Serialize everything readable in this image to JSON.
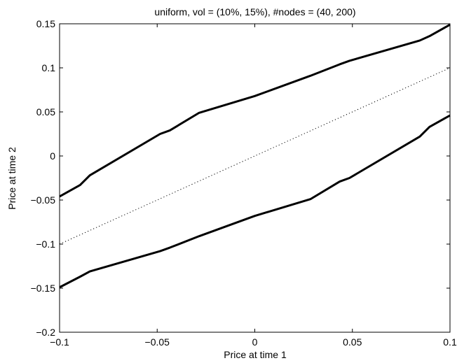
{
  "chart_data": {
    "type": "line",
    "title": "uniform, vol = (10%, 15%), #nodes = (40, 200)",
    "xlabel": "Price at time 1",
    "ylabel": "Price at time 2",
    "xlim": [
      -0.1,
      0.1
    ],
    "ylim": [
      -0.2,
      0.15
    ],
    "xticks": [
      -0.1,
      -0.05,
      0,
      0.05,
      0.1
    ],
    "xtick_labels": [
      "−0.1",
      "−0.05",
      "0",
      "0.05",
      "0.1"
    ],
    "yticks": [
      -0.2,
      -0.15,
      -0.1,
      -0.05,
      0,
      0.05,
      0.1,
      0.15
    ],
    "ytick_labels": [
      "−0.2",
      "−0.15",
      "−0.1",
      "−0.05",
      "0",
      "0.05",
      "0.1",
      "0.15"
    ],
    "grid": false,
    "legend": false,
    "series": [
      {
        "style": "solid-thick",
        "color": "#000000",
        "x": [
          -0.1,
          -0.0895,
          -0.0845,
          -0.0485,
          -0.0435,
          -0.0285,
          0.0,
          0.0285,
          0.0435,
          0.0485,
          0.0845,
          0.0895,
          0.1
        ],
        "y": [
          -0.046,
          -0.033,
          -0.022,
          0.025,
          0.029,
          0.049,
          0.068,
          0.091,
          0.104,
          0.108,
          0.131,
          0.136,
          0.149
        ]
      },
      {
        "style": "dotted",
        "color": "#000000",
        "x": [
          -0.1,
          0.1
        ],
        "y": [
          -0.1,
          0.1
        ]
      },
      {
        "style": "solid-thick",
        "color": "#000000",
        "x": [
          -0.1,
          -0.0895,
          -0.0845,
          -0.0485,
          -0.0435,
          -0.0285,
          0.0,
          0.0285,
          0.0435,
          0.0485,
          0.0845,
          0.0895,
          0.1
        ],
        "y": [
          -0.149,
          -0.137,
          -0.131,
          -0.108,
          -0.104,
          -0.091,
          -0.068,
          -0.049,
          -0.029,
          -0.025,
          0.022,
          0.033,
          0.046
        ]
      }
    ]
  }
}
